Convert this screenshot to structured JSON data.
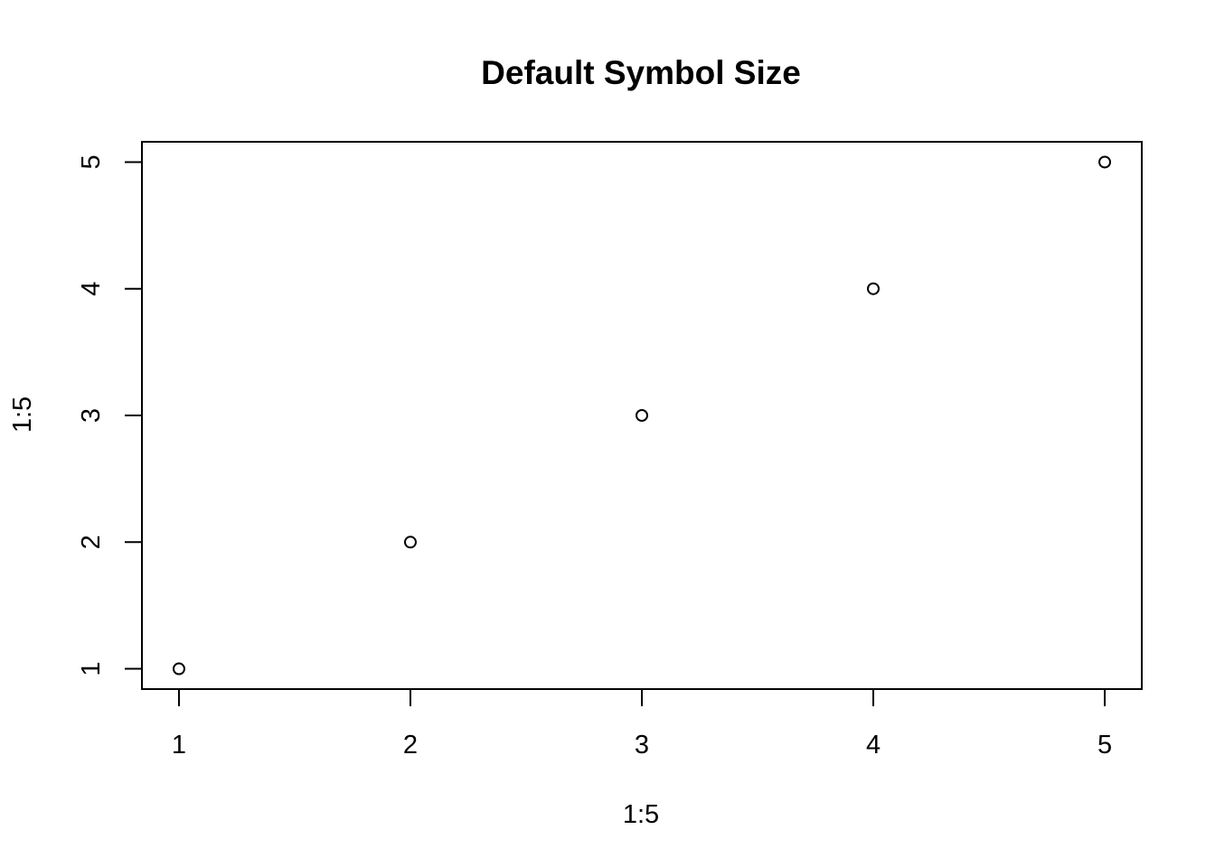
{
  "chart_data": {
    "type": "scatter",
    "title": "Default Symbol Size",
    "xlabel": "1:5",
    "ylabel": "1:5",
    "x": [
      1,
      2,
      3,
      4,
      5
    ],
    "y": [
      1,
      2,
      3,
      4,
      5
    ],
    "xlim": [
      0.84,
      5.16
    ],
    "ylim": [
      0.84,
      5.16
    ],
    "xticks": [
      1,
      2,
      3,
      4,
      5
    ],
    "yticks": [
      1,
      2,
      3,
      4,
      5
    ],
    "grid": false,
    "legend": "none",
    "marker": "open-circle",
    "colors": {
      "marker": "#000000",
      "axis": "#000000",
      "background": "#ffffff"
    }
  }
}
